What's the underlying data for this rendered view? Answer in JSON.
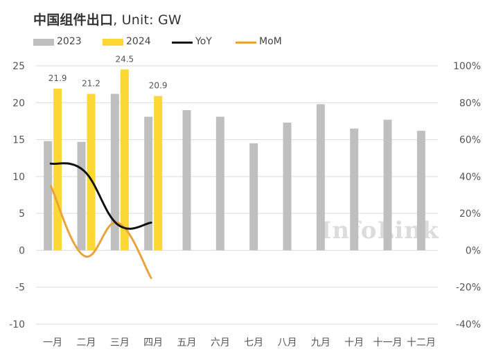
{
  "title": {
    "main": "中国组件出口",
    "unit": ", Unit: GW"
  },
  "watermark": "InfoLink",
  "colors": {
    "bar_2023": "#bfbfbf",
    "bar_2024": "#fdd835",
    "yoy": "#111111",
    "mom": "#e8a33d",
    "grid": "#d9d9d9",
    "text": "#555555"
  },
  "chart_data": {
    "type": "bar",
    "categories": [
      "一月",
      "二月",
      "三月",
      "四月",
      "五月",
      "六月",
      "七月",
      "八月",
      "九月",
      "十月",
      "十一月",
      "十二月"
    ],
    "series": [
      {
        "name": "2023",
        "type": "bar",
        "axis": "left",
        "color": "#bfbfbf",
        "values": [
          14.8,
          14.7,
          21.2,
          18.1,
          19.0,
          18.1,
          14.5,
          17.3,
          19.8,
          16.5,
          17.7,
          16.2
        ]
      },
      {
        "name": "2024",
        "type": "bar",
        "axis": "left",
        "color": "#fdd835",
        "values": [
          21.9,
          21.2,
          24.5,
          20.9,
          null,
          null,
          null,
          null,
          null,
          null,
          null,
          null
        ],
        "labels": [
          "21.9",
          "21.2",
          "24.5",
          "20.9"
        ]
      },
      {
        "name": "YoY",
        "type": "line",
        "axis": "right",
        "color": "#111111",
        "values": [
          47,
          43,
          14,
          15,
          null,
          null,
          null,
          null,
          null,
          null,
          null,
          null
        ]
      },
      {
        "name": "MoM",
        "type": "line",
        "axis": "right",
        "color": "#e8a33d",
        "values": [
          35,
          -3,
          15,
          -15,
          null,
          null,
          null,
          null,
          null,
          null,
          null,
          null
        ]
      }
    ],
    "y_left": {
      "min": -10,
      "max": 25,
      "ticks": [
        "-10",
        "-5",
        "0",
        "5",
        "10",
        "15",
        "20",
        "25"
      ]
    },
    "y_right": {
      "min": -40,
      "max": 100,
      "ticks": [
        "-40%",
        "-20%",
        "0%",
        "20%",
        "40%",
        "60%",
        "80%",
        "100%"
      ]
    },
    "grid": true,
    "legend_position": "top-left"
  }
}
